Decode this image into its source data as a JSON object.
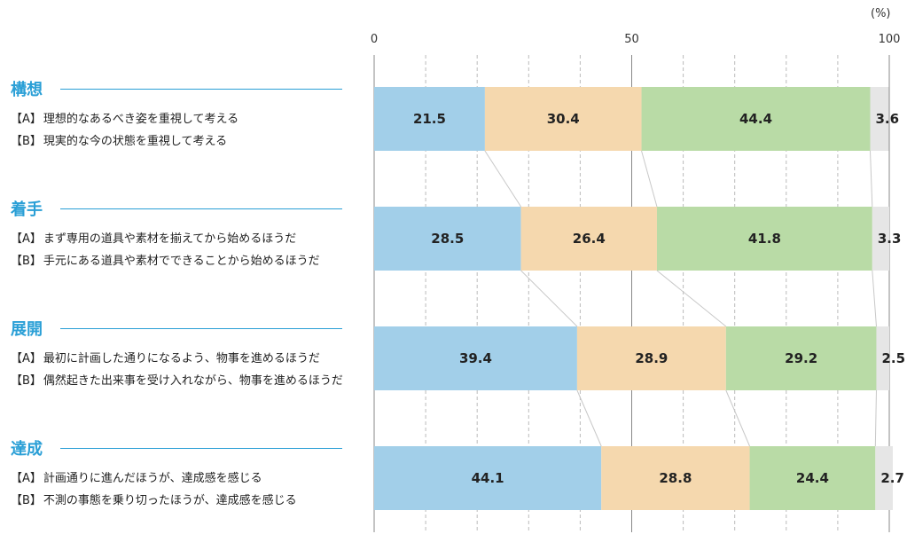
{
  "unit_label": "(%)",
  "groups": [
    {
      "title": "構想",
      "a_tag": "【A】",
      "a_text": "理想的なあるべき姿を重視して考える",
      "b_tag": "【B】",
      "b_text": "現実的な今の状態を重視して考える"
    },
    {
      "title": "着手",
      "a_tag": "【A】",
      "a_text": "まず専用の道具や素材を揃えてから始めるほうだ",
      "b_tag": "【B】",
      "b_text": "手元にある道具や素材でできることから始めるほうだ"
    },
    {
      "title": "展開",
      "a_tag": "【A】",
      "a_text": "最初に計画した通りになるよう、物事を進めるほうだ",
      "b_tag": "【B】",
      "b_text": "偶然起きた出来事を受け入れながら、物事を進めるほうだ"
    },
    {
      "title": "達成",
      "a_tag": "【A】",
      "a_text": "計画通りに進んだほうが、達成感を感じる",
      "b_tag": "【B】",
      "b_text": "不測の事態を乗り切ったほうが、達成感を感じる"
    }
  ],
  "chart_data": {
    "type": "bar",
    "orientation": "horizontal",
    "stacked": true,
    "xlim": [
      0,
      100
    ],
    "xticks": [
      "0",
      "50",
      "100"
    ],
    "grid": true,
    "categories": [
      "構想",
      "着手",
      "展開",
      "達成"
    ],
    "series": [
      {
        "color": "#a2cfe9",
        "values": [
          21.5,
          28.5,
          39.4,
          44.1
        ]
      },
      {
        "color": "#f5d8ae",
        "values": [
          30.4,
          26.4,
          28.9,
          28.8
        ]
      },
      {
        "color": "#b9dba6",
        "values": [
          44.4,
          41.8,
          29.2,
          24.4
        ]
      },
      {
        "color": "#e6e6e6",
        "values": [
          3.6,
          3.3,
          2.5,
          2.7
        ]
      }
    ],
    "connector_lines": true
  }
}
